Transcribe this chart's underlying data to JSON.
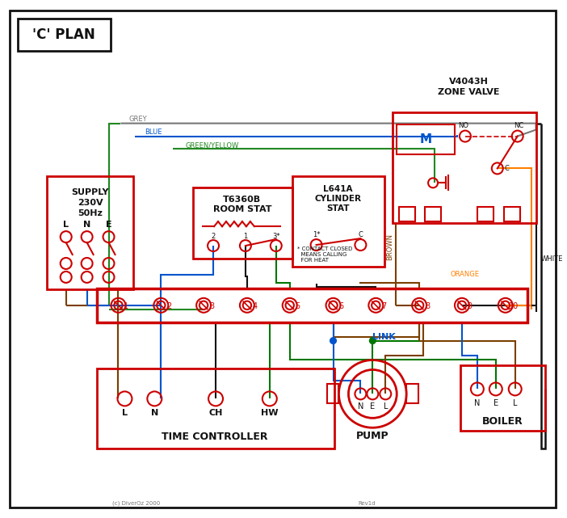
{
  "bg": "#ffffff",
  "red": "#cc0000",
  "blue": "#0055cc",
  "green": "#007700",
  "grey": "#777777",
  "brown": "#7B3F00",
  "black": "#111111",
  "orange": "#FF8000",
  "gy": "#228822",
  "title": "'C' PLAN",
  "supply_text1": "SUPPLY",
  "supply_text2": "230V",
  "supply_text3": "50Hz",
  "supply_labels": [
    "L",
    "N",
    "E"
  ],
  "zone_valve_line1": "V4043H",
  "zone_valve_line2": "ZONE VALVE",
  "room_stat_line1": "T6360B",
  "room_stat_line2": "ROOM STAT",
  "cyl_stat_line1": "L641A",
  "cyl_stat_line2": "CYLINDER",
  "cyl_stat_line3": "STAT",
  "tc_title": "TIME CONTROLLER",
  "tc_labels": [
    "L",
    "N",
    "CH",
    "HW"
  ],
  "pump_title": "PUMP",
  "pump_labels": [
    "N",
    "E",
    "L"
  ],
  "boiler_title": "BOILER",
  "boiler_labels": [
    "N",
    "E",
    "L"
  ],
  "link_text": "LINK",
  "note": "* CONTACT CLOSED\n  MEANS CALLING\n  FOR HEAT",
  "copyright": "(c) DiverOz 2000",
  "revision": "Rev1d",
  "wire_grey": "GREY",
  "wire_blue": "BLUE",
  "wire_gy": "GREEN/YELLOW",
  "wire_brown": "BROWN",
  "wire_white": "WHITE",
  "wire_orange": "ORANGE"
}
